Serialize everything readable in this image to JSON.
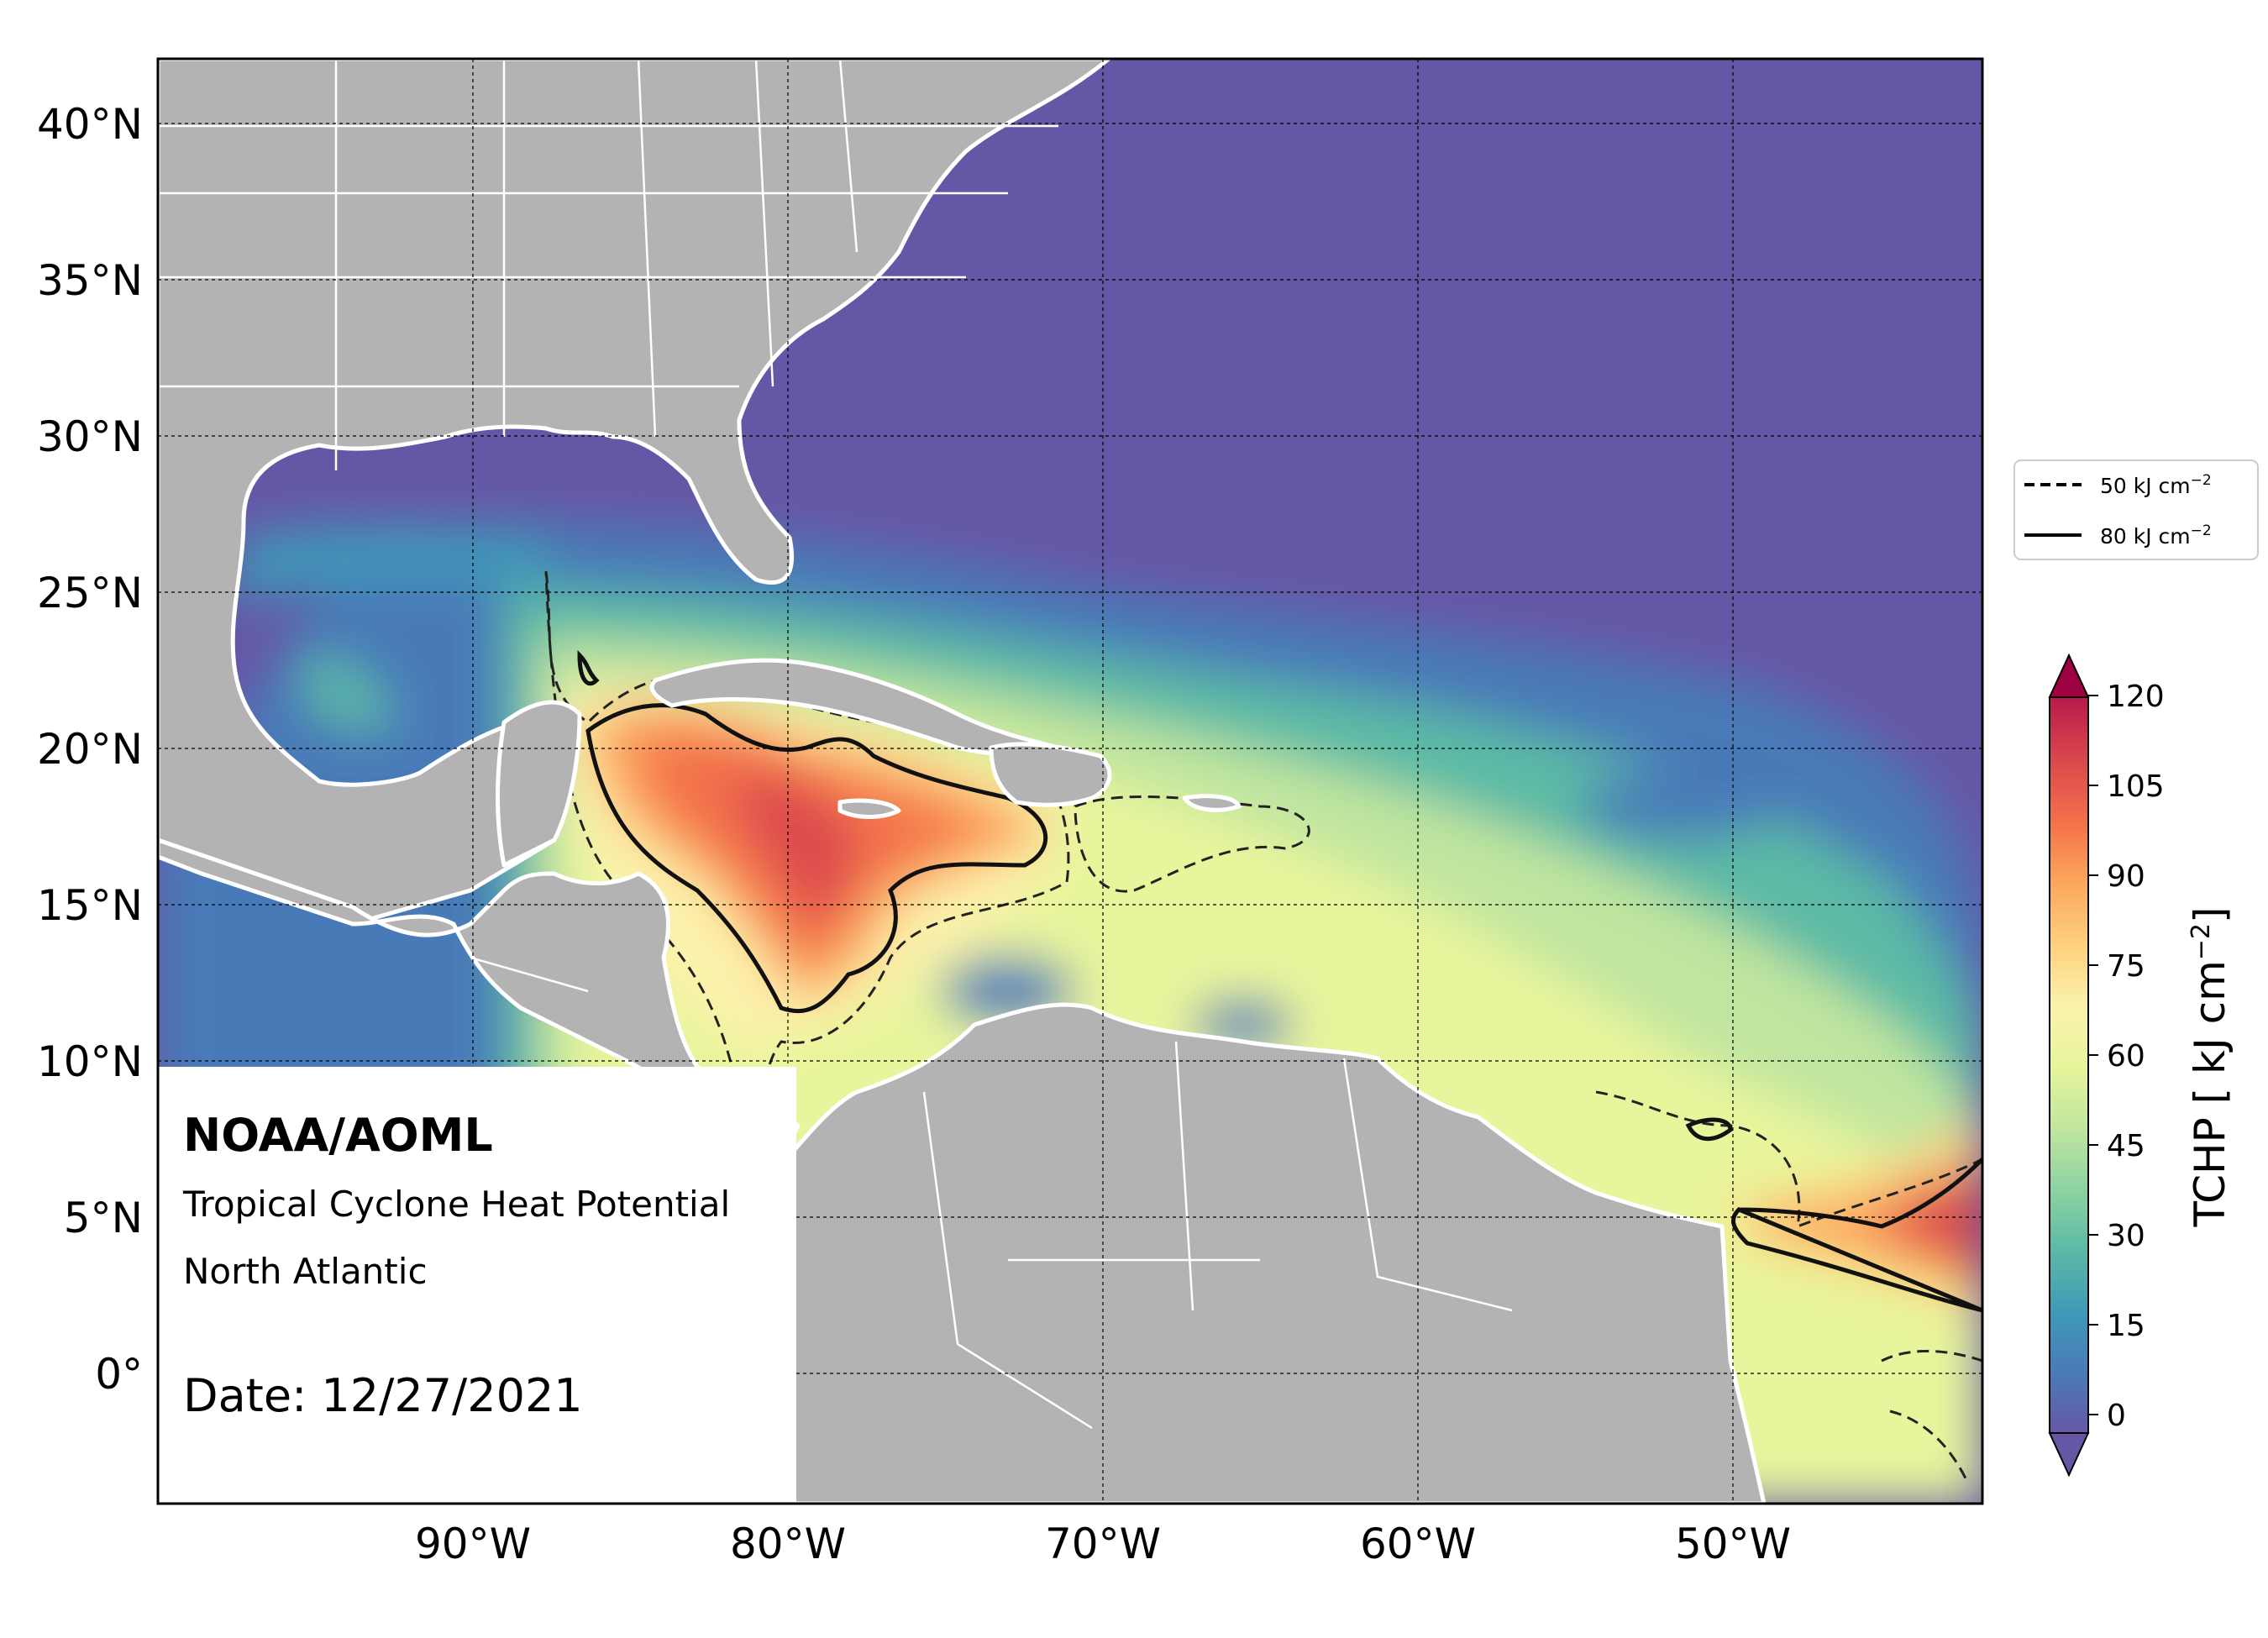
{
  "info": {
    "org": "NOAA/AOML",
    "product": "Tropical Cyclone Heat Potential",
    "region": "North Atlantic",
    "date": "Date: 12/27/2021"
  },
  "axes": {
    "lat_ticks": [
      "40°N",
      "35°N",
      "30°N",
      "25°N",
      "20°N",
      "15°N",
      "10°N",
      "5°N",
      "0°"
    ],
    "lon_ticks": [
      "90°W",
      "80°W",
      "70°W",
      "60°W",
      "50°W"
    ]
  },
  "legend": {
    "dashed": "50 kJ cm",
    "solid": "80 kJ cm",
    "sup": "−2"
  },
  "colorbar": {
    "ticks": [
      "120",
      "105",
      "90",
      "75",
      "60",
      "45",
      "30",
      "15",
      "0"
    ],
    "label_prefix": "TCHP [ kJ cm",
    "label_sup": "−2",
    "label_suffix": "]",
    "colors": [
      "#6657a6",
      "#4a7ab8",
      "#3e98b8",
      "#5cbaa5",
      "#8dd2a2",
      "#bfe59f",
      "#e8f59c",
      "#fcf2ac",
      "#fed27f",
      "#fca55c",
      "#f3714b",
      "#dc4a4d",
      "#b81a4b",
      "#9e0142"
    ]
  },
  "colors": {
    "land": "#b3b3b3",
    "ocean_cold": "#6657a6",
    "border": "#ffffff"
  }
}
